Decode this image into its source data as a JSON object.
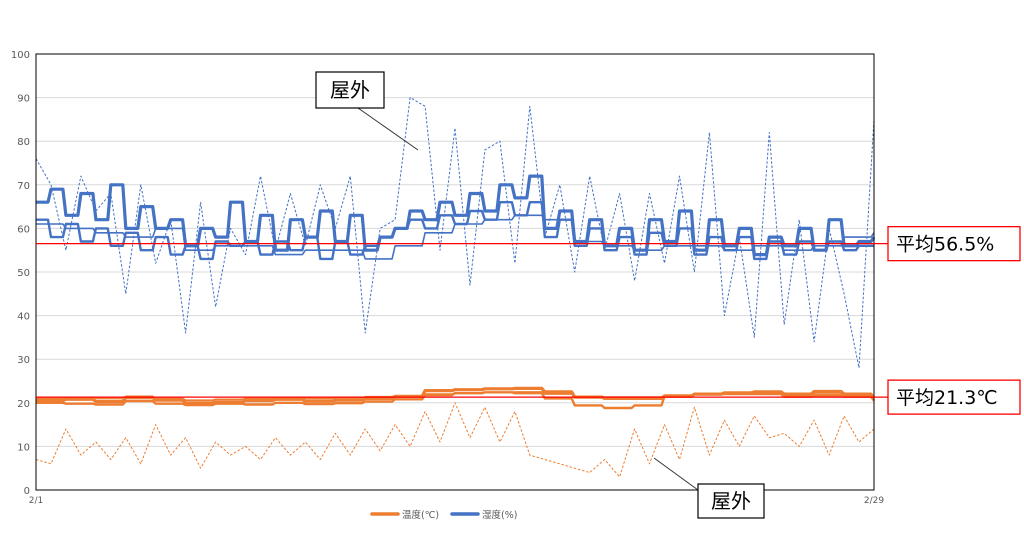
{
  "chart_data": {
    "type": "line",
    "title": "",
    "xlabel": "",
    "ylabel": "",
    "ylim": [
      0,
      100
    ],
    "y_ticks": [
      0,
      10,
      20,
      30,
      40,
      50,
      60,
      70,
      80,
      90,
      100
    ],
    "x_range": [
      1,
      29
    ],
    "x_tick_labels": [
      {
        "x": 1,
        "label": "2/1"
      },
      {
        "x": 29,
        "label": "2/29"
      }
    ],
    "grid": true,
    "legend_position": "bottom",
    "legend": [
      {
        "label": "温度(℃)",
        "color": "#ED7D31"
      },
      {
        "label": "湿度(%)",
        "color": "#4472C4"
      }
    ],
    "series": [
      {
        "kind": "humidity-outdoor",
        "color": "#4472C4",
        "style": "dashed",
        "x": [
          1,
          1.5,
          2,
          2.5,
          3,
          3.5,
          4,
          4.5,
          5,
          5.5,
          6,
          6.5,
          7,
          7.5,
          8,
          8.5,
          9,
          9.5,
          10,
          10.5,
          11,
          11.5,
          12,
          12.5,
          13,
          13.5,
          14,
          14.5,
          15,
          15.5,
          16,
          16.5,
          17,
          17.5,
          18,
          18.5,
          19,
          19.5,
          20,
          20.5,
          21,
          21.5,
          22,
          22.5,
          23,
          23.5,
          24,
          24.5,
          25,
          25.5,
          26,
          26.5,
          27,
          27.5,
          28,
          28.5,
          29
        ],
        "values": [
          76,
          70,
          55,
          72,
          64,
          68,
          45,
          70,
          52,
          62,
          36,
          66,
          42,
          60,
          54,
          72,
          55,
          68,
          56,
          70,
          60,
          72,
          36,
          60,
          62,
          90,
          88,
          55,
          83,
          47,
          78,
          80,
          52,
          88,
          58,
          70,
          50,
          72,
          55,
          68,
          48,
          68,
          52,
          72,
          50,
          82,
          40,
          58,
          35,
          82,
          38,
          62,
          34,
          60,
          45,
          28,
          85
        ]
      },
      {
        "kind": "humidity-room-a",
        "color": "#4472C4",
        "style": "thick",
        "x": [
          1,
          1.5,
          2,
          2.5,
          3,
          3.5,
          4,
          4.5,
          5,
          5.5,
          6,
          6.5,
          7,
          7.5,
          8,
          8.5,
          9,
          9.5,
          10,
          10.5,
          11,
          11.5,
          12,
          12.5,
          13,
          13.5,
          14,
          14.5,
          15,
          15.5,
          16,
          16.5,
          17,
          17.5,
          18,
          18.5,
          19,
          19.5,
          20,
          20.5,
          21,
          21.5,
          22,
          22.5,
          23,
          23.5,
          24,
          24.5,
          25,
          25.5,
          26,
          26.5,
          27,
          27.5,
          28,
          28.5,
          29
        ],
        "values": [
          66,
          69,
          63,
          68,
          62,
          70,
          60,
          65,
          60,
          62,
          56,
          60,
          58,
          66,
          57,
          63,
          55,
          62,
          58,
          64,
          57,
          63,
          55,
          58,
          60,
          64,
          62,
          66,
          63,
          68,
          64,
          70,
          67,
          72,
          60,
          64,
          57,
          62,
          56,
          60,
          55,
          62,
          57,
          64,
          55,
          62,
          56,
          60,
          54,
          58,
          56,
          60,
          55,
          62,
          56,
          57,
          58
        ]
      },
      {
        "kind": "humidity-room-b",
        "color": "#4472C4",
        "style": "thin",
        "x": [
          1,
          2,
          3,
          4,
          5,
          6,
          7,
          8,
          9,
          10,
          11,
          12,
          13,
          14,
          15,
          16,
          17,
          18,
          19,
          20,
          21,
          22,
          23,
          24,
          25,
          26,
          27,
          28,
          29
        ],
        "values": [
          61,
          60,
          59,
          58,
          60,
          55,
          56,
          56,
          54,
          55,
          55,
          53,
          56,
          59,
          61,
          62,
          63,
          62,
          57,
          56,
          55,
          56,
          56,
          55,
          56,
          55,
          56,
          58,
          59
        ]
      },
      {
        "kind": "humidity-room-c",
        "color": "#4472C4",
        "style": "medium",
        "x": [
          1,
          1.5,
          2,
          2.5,
          3,
          3.5,
          4,
          4.5,
          5,
          5.5,
          6,
          6.5,
          7,
          7.5,
          8,
          8.5,
          9,
          9.5,
          10,
          10.5,
          11,
          11.5,
          12,
          12.5,
          13,
          13.5,
          14,
          14.5,
          15,
          15.5,
          16,
          16.5,
          17,
          17.5,
          18,
          18.5,
          19,
          19.5,
          20,
          20.5,
          21,
          21.5,
          22,
          22.5,
          23,
          23.5,
          24,
          24.5,
          25,
          25.5,
          26,
          26.5,
          27,
          27.5,
          28,
          28.5,
          29
        ],
        "values": [
          62,
          58,
          61,
          57,
          60,
          56,
          59,
          55,
          58,
          54,
          56,
          53,
          57,
          56,
          57,
          54,
          57,
          55,
          58,
          53,
          57,
          54,
          56,
          58,
          60,
          62,
          60,
          63,
          61,
          64,
          62,
          66,
          63,
          66,
          58,
          62,
          56,
          60,
          55,
          58,
          54,
          59,
          56,
          60,
          54,
          58,
          55,
          58,
          53,
          57,
          54,
          57,
          55,
          57,
          55,
          56,
          56
        ]
      },
      {
        "kind": "temperature-room-a",
        "color": "#ED7D31",
        "style": "thick",
        "x": [
          1,
          2,
          3,
          4,
          5,
          6,
          7,
          8,
          9,
          10,
          11,
          12,
          13,
          14,
          15,
          16,
          17,
          18,
          19,
          20,
          21,
          22,
          23,
          24,
          25,
          26,
          27,
          28,
          29
        ],
        "values": [
          20.5,
          20.8,
          20.3,
          21.2,
          20.6,
          20.0,
          20.2,
          20.5,
          20.8,
          20.4,
          20.6,
          21.0,
          21.5,
          22.8,
          23.0,
          23.2,
          23.3,
          22.5,
          21.3,
          21.0,
          21.0,
          21.5,
          22.0,
          22.3,
          22.5,
          22.0,
          22.6,
          22.0,
          21.0
        ]
      },
      {
        "kind": "temperature-room-b",
        "color": "#ED7D31",
        "style": "medium",
        "x": [
          1,
          2,
          3,
          4,
          5,
          6,
          7,
          8,
          9,
          10,
          11,
          12,
          13,
          14,
          15,
          16,
          17,
          18,
          19,
          20,
          21,
          22,
          23,
          24,
          25,
          26,
          27,
          28,
          29
        ],
        "values": [
          20.0,
          19.8,
          19.6,
          20.4,
          19.8,
          19.5,
          19.8,
          19.6,
          20.0,
          19.7,
          19.9,
          20.3,
          20.8,
          21.8,
          22.2,
          22.4,
          22.2,
          21.0,
          19.4,
          18.8,
          19.4,
          21.5,
          22.0,
          22.0,
          22.0,
          21.4,
          21.6,
          21.4,
          20.5
        ]
      },
      {
        "kind": "temperature-room-c",
        "color": "#ED7D31",
        "style": "thin",
        "x": [
          1,
          2,
          3,
          4,
          5,
          6,
          7,
          8,
          9,
          10,
          11,
          12,
          13,
          14,
          15,
          16,
          17,
          18,
          19,
          20,
          21,
          22,
          23,
          24,
          25,
          26,
          27,
          28,
          29
        ],
        "values": [
          21.0,
          21.2,
          21.0,
          21.5,
          21.0,
          20.6,
          20.8,
          21.0,
          21.2,
          21.0,
          21.1,
          21.4,
          21.6,
          22.0,
          22.3,
          22.4,
          22.5,
          22.0,
          21.5,
          21.3,
          21.3,
          21.8,
          22.0,
          22.1,
          22.2,
          21.9,
          22.0,
          21.8,
          21.2
        ]
      },
      {
        "kind": "temperature-outdoor",
        "color": "#ED7D31",
        "style": "dashed",
        "x": [
          1,
          1.5,
          2,
          2.5,
          3,
          3.5,
          4,
          4.5,
          5,
          5.5,
          6,
          6.5,
          7,
          7.5,
          8,
          8.5,
          9,
          9.5,
          10,
          10.5,
          11,
          11.5,
          12,
          12.5,
          13,
          13.5,
          14,
          14.5,
          15,
          15.5,
          16,
          16.5,
          17,
          17.5,
          18,
          18.5,
          19,
          19.5,
          20,
          20.5,
          21,
          21.5,
          22,
          22.5,
          23,
          23.5,
          24,
          24.5,
          25,
          25.5,
          26,
          26.5,
          27,
          27.5,
          28,
          28.5,
          29
        ],
        "values": [
          7,
          6,
          14,
          8,
          11,
          7,
          12,
          6,
          15,
          8,
          12,
          5,
          11,
          8,
          10,
          7,
          12,
          8,
          11,
          7,
          13,
          8,
          14,
          9,
          15,
          10,
          18,
          11,
          20,
          12,
          19,
          11,
          18,
          8,
          7,
          6,
          5,
          4,
          7,
          3,
          14,
          6,
          15,
          7,
          19,
          8,
          16,
          10,
          17,
          12,
          13,
          10,
          16,
          8,
          17,
          11,
          14
        ]
      }
    ],
    "reference_lines": [
      {
        "value": 56.5,
        "label": "平均56.5%",
        "color": "#FF0000"
      },
      {
        "value": 21.3,
        "label": "平均21.3℃",
        "color": "#FF0000"
      }
    ],
    "annotations": [
      {
        "text": "屋外",
        "target": "humidity-outdoor"
      },
      {
        "text": "屋外",
        "target": "temperature-outdoor"
      }
    ]
  }
}
